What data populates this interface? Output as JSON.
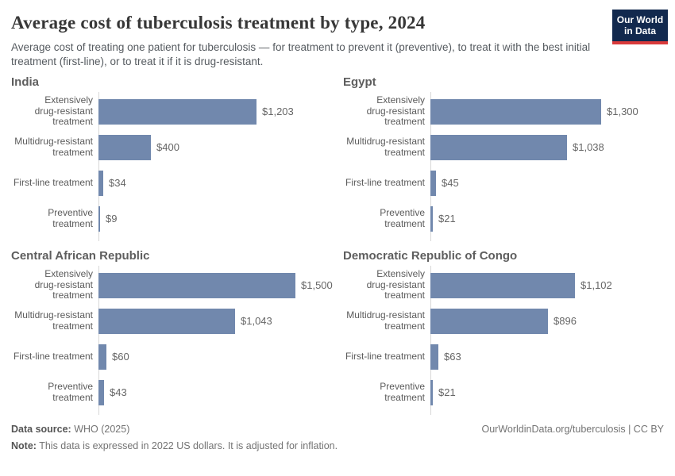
{
  "header": {
    "title": "Average cost of tuberculosis treatment by type, 2024",
    "subtitle": "Average cost of treating one patient for tuberculosis — for treatment to prevent it (preventive), to treat it with the best initial treatment (first-line), or to treat it if it is drug-resistant.",
    "logo": {
      "line1": "Our World",
      "line2": "in Data",
      "bg_color": "#12294e",
      "accent_color": "#d93a3b"
    }
  },
  "chart_data": {
    "type": "bar",
    "orientation": "horizontal",
    "title": "Average cost of tuberculosis treatment by type, 2024",
    "unit": "US dollars (2022)",
    "xlim": [
      0,
      1500
    ],
    "grid": false,
    "legend": false,
    "bar_color": "#7188ad",
    "axis_color": "#d8d8d8",
    "categories": [
      "Extensively\ndrug-resistant\ntreatment",
      "Multidrug-resistant\ntreatment",
      "First-line treatment",
      "Preventive\ntreatment"
    ],
    "panels": [
      {
        "country": "India",
        "values": [
          1203,
          400,
          34,
          9
        ],
        "value_labels": [
          "$1,203",
          "$400",
          "$34",
          "$9"
        ]
      },
      {
        "country": "Egypt",
        "values": [
          1300,
          1038,
          45,
          21
        ],
        "value_labels": [
          "$1,300",
          "$1,038",
          "$45",
          "$21"
        ]
      },
      {
        "country": "Central African Republic",
        "values": [
          1500,
          1043,
          60,
          43
        ],
        "value_labels": [
          "$1,500",
          "$1,043",
          "$60",
          "$43"
        ]
      },
      {
        "country": "Democratic Republic of Congo",
        "values": [
          1102,
          896,
          63,
          21
        ],
        "value_labels": [
          "$1,102",
          "$896",
          "$63",
          "$21"
        ]
      }
    ]
  },
  "footer": {
    "source_label": "Data source:",
    "source_value": " WHO (2025)",
    "note_label": "Note:",
    "note_value": " This data is expressed in 2022 US dollars. It is adjusted for inflation.",
    "citation": "OurWorldinData.org/tuberculosis | CC BY"
  }
}
